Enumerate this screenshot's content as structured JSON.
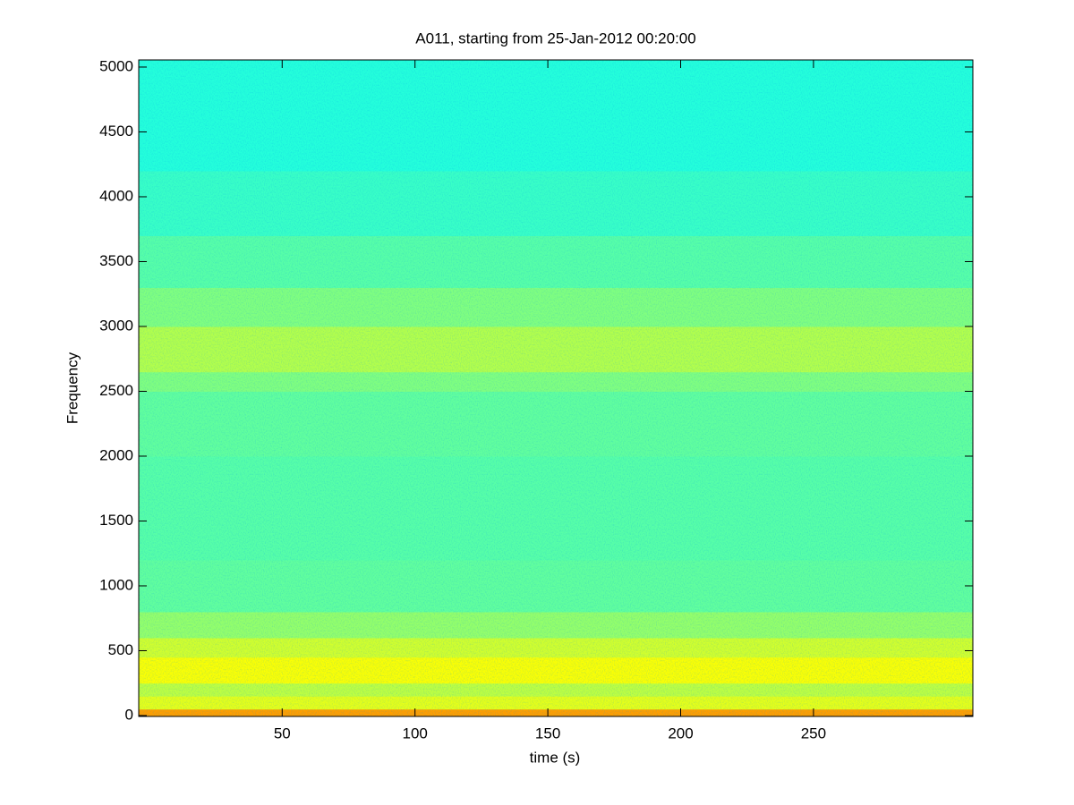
{
  "chart_data": {
    "type": "spectrogram",
    "title": "A011, starting from 25-Jan-2012 00:20:00",
    "x_label": "time (s)",
    "y_label": "Frequency",
    "colormap": "jet",
    "bins": [
      0,
      50,
      150,
      250,
      450,
      600,
      800,
      1200,
      2000,
      2500,
      2650,
      3000,
      3300,
      3700,
      4200,
      5055
    ],
    "levels": [
      0.72,
      0.6,
      0.56,
      0.62,
      0.58,
      0.52,
      0.47,
      0.46,
      0.47,
      0.5,
      0.55,
      0.5,
      0.46,
      0.43,
      0.41
    ],
    "xlim": [
      -4,
      310
    ],
    "ylim": [
      -7,
      5055
    ],
    "xticks": [
      50,
      100,
      150,
      200,
      250
    ],
    "yticks": [
      0,
      500,
      1000,
      1500,
      2000,
      2500,
      3000,
      3500,
      4000,
      4500,
      5000
    ]
  }
}
